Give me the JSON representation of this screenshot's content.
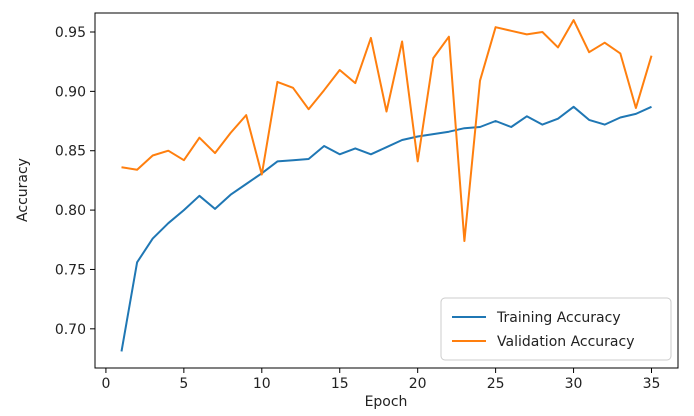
{
  "chart_data": {
    "type": "line",
    "title": "",
    "xlabel": "Epoch",
    "ylabel": "Accuracy",
    "xlim": [
      -0.7,
      36.7
    ],
    "ylim": [
      0.667,
      0.966
    ],
    "xticks": [
      0,
      5,
      10,
      15,
      20,
      25,
      30,
      35
    ],
    "yticks": [
      0.7,
      0.75,
      0.8,
      0.85,
      0.9,
      0.95
    ],
    "legend_position": "lower-right",
    "grid": false,
    "x": [
      1,
      2,
      3,
      4,
      5,
      6,
      7,
      8,
      9,
      10,
      11,
      12,
      13,
      14,
      15,
      16,
      17,
      18,
      19,
      20,
      21,
      22,
      23,
      24,
      25,
      26,
      27,
      28,
      29,
      30,
      31,
      32,
      33,
      34,
      35
    ],
    "series": [
      {
        "name": "Training Accuracy",
        "color": "#1f77b4",
        "values": [
          0.681,
          0.756,
          0.776,
          0.789,
          0.8,
          0.812,
          0.801,
          0.813,
          0.822,
          0.831,
          0.841,
          0.842,
          0.843,
          0.854,
          0.847,
          0.852,
          0.847,
          0.853,
          0.859,
          0.862,
          0.864,
          0.866,
          0.869,
          0.87,
          0.875,
          0.87,
          0.879,
          0.872,
          0.877,
          0.887,
          0.876,
          0.872,
          0.878,
          0.881,
          0.887
        ]
      },
      {
        "name": "Validation Accuracy",
        "color": "#ff7f0e",
        "values": [
          0.836,
          0.834,
          0.846,
          0.85,
          0.842,
          0.861,
          0.848,
          0.865,
          0.88,
          0.83,
          0.908,
          0.903,
          0.885,
          0.901,
          0.918,
          0.907,
          0.945,
          0.883,
          0.942,
          0.841,
          0.928,
          0.946,
          0.774,
          0.909,
          0.954,
          0.951,
          0.948,
          0.95,
          0.937,
          0.96,
          0.933,
          0.941,
          0.932,
          0.886,
          0.93
        ]
      }
    ]
  }
}
